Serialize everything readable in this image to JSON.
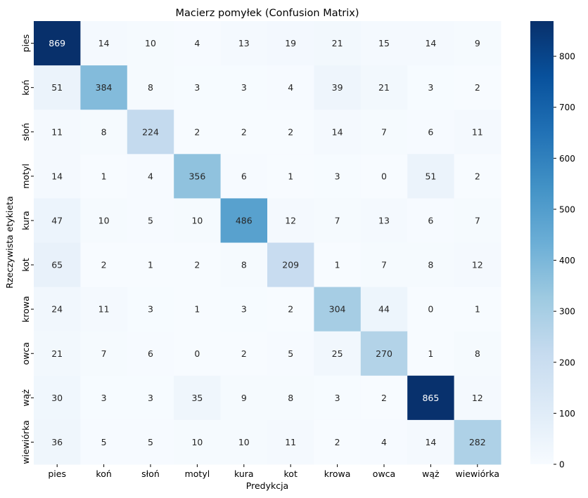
{
  "chart_data": {
    "type": "heatmap",
    "title": "Macierz pomyłek (Confusion Matrix)",
    "xlabel": "Predykcja",
    "ylabel": "Rzeczywista etykieta",
    "x_categories": [
      "pies",
      "koń",
      "słoń",
      "motyl",
      "kura",
      "kot",
      "krowa",
      "owca",
      "wąż",
      "wiewiórka"
    ],
    "y_categories": [
      "pies",
      "koń",
      "słoń",
      "motyl",
      "kura",
      "kot",
      "krowa",
      "owca",
      "wąż",
      "wiewiórka"
    ],
    "values": [
      [
        869,
        14,
        10,
        4,
        13,
        19,
        21,
        15,
        14,
        9
      ],
      [
        51,
        384,
        8,
        3,
        3,
        4,
        39,
        21,
        3,
        2
      ],
      [
        11,
        8,
        224,
        2,
        2,
        2,
        14,
        7,
        6,
        11
      ],
      [
        14,
        1,
        4,
        356,
        6,
        1,
        3,
        0,
        51,
        2
      ],
      [
        47,
        10,
        5,
        10,
        486,
        12,
        7,
        13,
        6,
        7
      ],
      [
        65,
        2,
        1,
        2,
        8,
        209,
        1,
        7,
        8,
        12
      ],
      [
        24,
        11,
        3,
        1,
        3,
        2,
        304,
        44,
        0,
        1
      ],
      [
        21,
        7,
        6,
        0,
        2,
        5,
        25,
        270,
        1,
        8
      ],
      [
        30,
        3,
        3,
        35,
        9,
        8,
        3,
        2,
        865,
        12
      ],
      [
        36,
        5,
        5,
        10,
        10,
        11,
        2,
        4,
        14,
        282
      ]
    ],
    "colormap": "Blues",
    "vmin": 0,
    "vmax": 869,
    "colorbar_ticks": [
      0,
      100,
      200,
      300,
      400,
      500,
      600,
      700,
      800
    ],
    "annotations": true,
    "grid": false
  }
}
